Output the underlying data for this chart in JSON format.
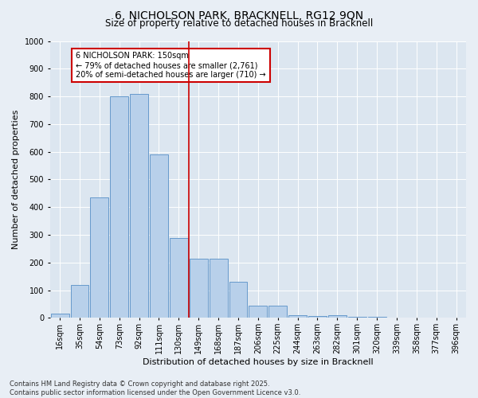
{
  "title": "6, NICHOLSON PARK, BRACKNELL, RG12 9QN",
  "subtitle": "Size of property relative to detached houses in Bracknell",
  "xlabel": "Distribution of detached houses by size in Bracknell",
  "ylabel": "Number of detached properties",
  "bar_labels": [
    "16sqm",
    "35sqm",
    "54sqm",
    "73sqm",
    "92sqm",
    "111sqm",
    "130sqm",
    "149sqm",
    "168sqm",
    "187sqm",
    "206sqm",
    "225sqm",
    "244sqm",
    "263sqm",
    "282sqm",
    "301sqm",
    "320sqm",
    "339sqm",
    "358sqm",
    "377sqm",
    "396sqm"
  ],
  "bar_values": [
    15,
    120,
    435,
    800,
    810,
    590,
    290,
    215,
    215,
    130,
    45,
    43,
    10,
    8,
    10,
    5,
    3,
    2,
    1,
    1,
    1
  ],
  "bar_color": "#b8d0ea",
  "bar_edge_color": "#6699cc",
  "vline_x": 6.5,
  "vline_color": "#cc0000",
  "annotation_text": "6 NICHOLSON PARK: 150sqm\n← 79% of detached houses are smaller (2,761)\n20% of semi-detached houses are larger (710) →",
  "annotation_box_color": "#cc0000",
  "ylim": [
    0,
    1000
  ],
  "yticks": [
    0,
    100,
    200,
    300,
    400,
    500,
    600,
    700,
    800,
    900,
    1000
  ],
  "footer": "Contains HM Land Registry data © Crown copyright and database right 2025.\nContains public sector information licensed under the Open Government Licence v3.0.",
  "bg_color": "#e8eef5",
  "plot_bg_color": "#dce6f0",
  "grid_color": "#ffffff",
  "title_fontsize": 10,
  "subtitle_fontsize": 8.5,
  "axis_label_fontsize": 8,
  "tick_fontsize": 7,
  "annotation_fontsize": 7,
  "footer_fontsize": 6
}
